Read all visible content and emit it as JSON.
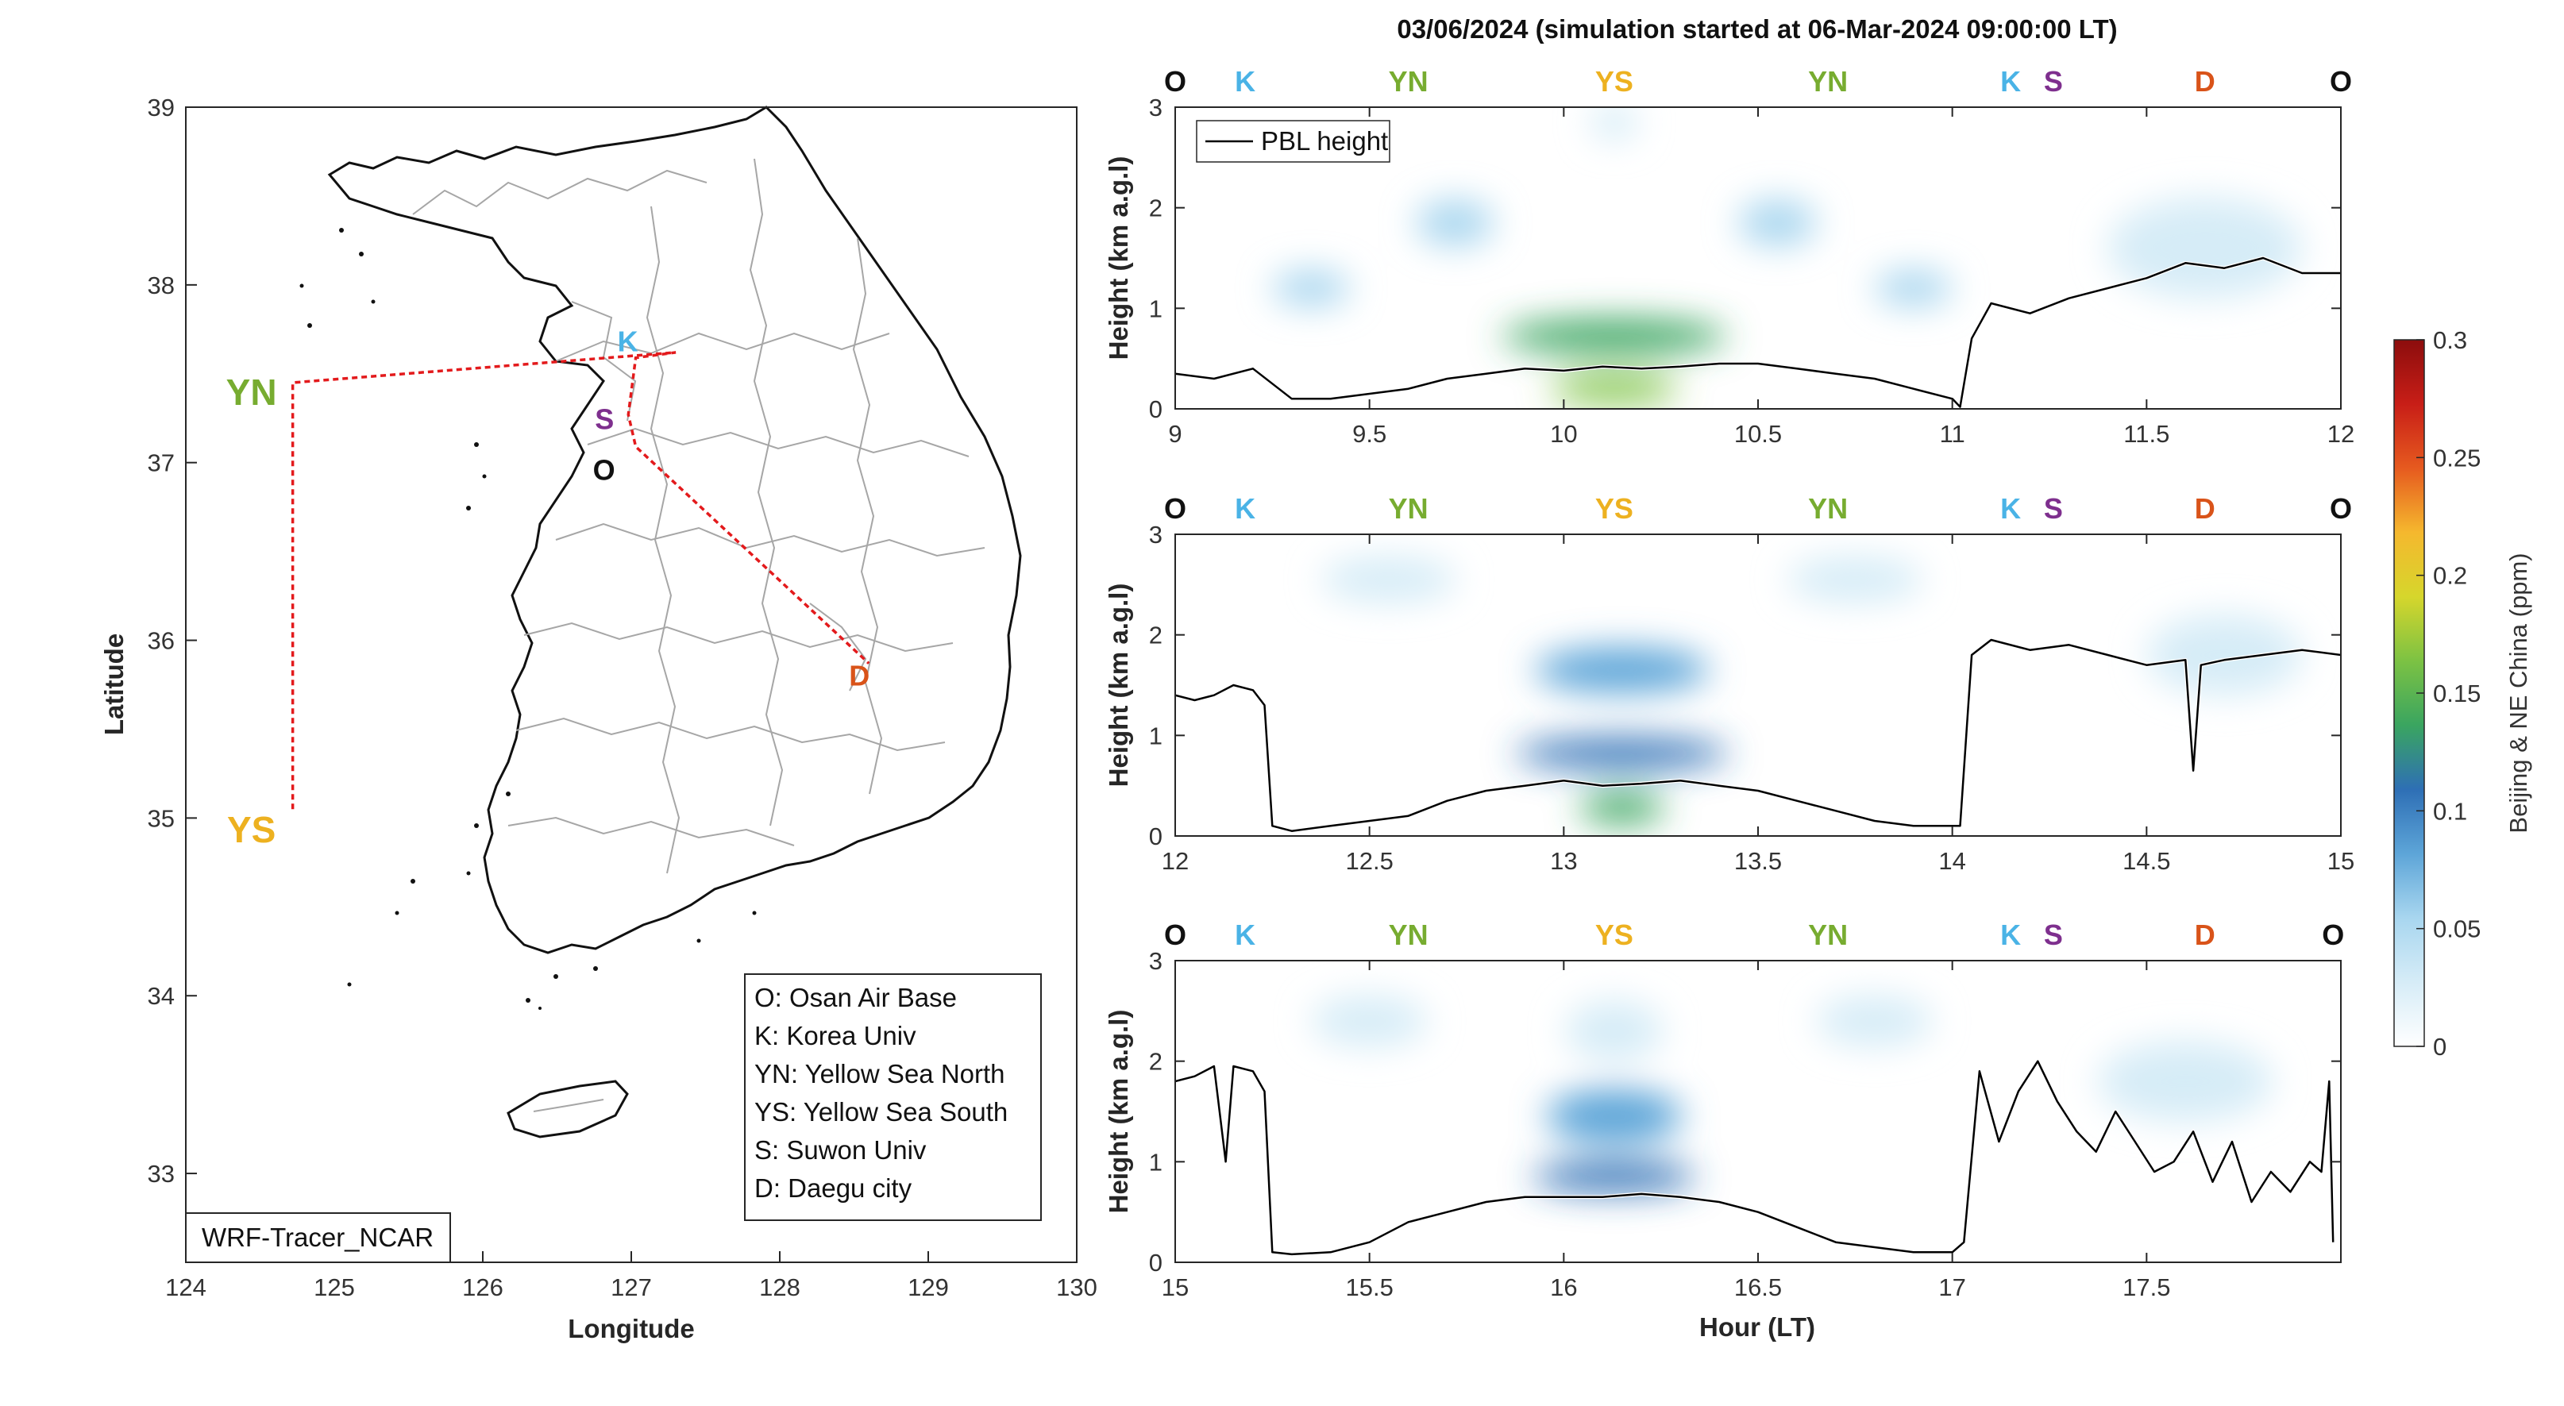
{
  "colors": {
    "O": "#111111",
    "K": "#4ab3e6",
    "YN": "#77ac30",
    "YS": "#edb120",
    "S": "#7e2f8e",
    "D": "#d95319",
    "track": "#e31a1c",
    "pbl": "#000000"
  },
  "map": {
    "xlabel": "Longitude",
    "ylabel": "Latitude",
    "xticks": [
      "124",
      "125",
      "126",
      "127",
      "128",
      "129",
      "130"
    ],
    "yticks": [
      "33",
      "34",
      "35",
      "36",
      "37",
      "38",
      "39"
    ],
    "xlim": [
      124,
      130
    ],
    "ylim": [
      32.5,
      39
    ],
    "model_label": "WRF-Tracer_NCAR",
    "sites": [
      {
        "code": "YN",
        "lon": 124.72,
        "lat": 37.45
      },
      {
        "code": "YS",
        "lon": 124.72,
        "lat": 35.05
      },
      {
        "code": "K",
        "lon": 127.03,
        "lat": 37.59
      },
      {
        "code": "S",
        "lon": 126.98,
        "lat": 37.27
      },
      {
        "code": "O",
        "lon": 127.03,
        "lat": 37.09
      },
      {
        "code": "D",
        "lon": 128.6,
        "lat": 35.87
      }
    ],
    "legend": [
      "O: Osan Air Base",
      "K: Korea Univ",
      "YN: Yellow Sea North",
      "YS: Yellow Sea South",
      "S: Suwon Univ",
      "D: Daegu city"
    ],
    "icons": [
      "korea-coastline-icon",
      "jeju-island-icon",
      "admin-boundary-icon"
    ]
  },
  "curtain": {
    "title": "03/06/2024 (simulation started at 06-Mar-2024 09:00:00 LT)",
    "xlabel": "Hour (LT)",
    "ylabel": "Height (km a.g.l)",
    "legend_label": "PBL height",
    "colorbar_label": "Beijing & NE China (ppm)",
    "colorbar_ticks": [
      "0",
      "0.05",
      "0.1",
      "0.15",
      "0.2",
      "0.25",
      "0.3"
    ],
    "colorbar_range": [
      0,
      0.3
    ],
    "colorbar_colors": [
      "#ffffff",
      "#d6ecf7",
      "#a8d6ef",
      "#5da5d8",
      "#2e6fb5",
      "#3aa560",
      "#7cc243",
      "#d6d62c",
      "#f5b82e",
      "#e65a1f",
      "#c81e17",
      "#8c0d0d"
    ]
  },
  "chart_data": [
    {
      "type": "heatmap",
      "panel": "top",
      "x_range": [
        9,
        12
      ],
      "ylim": [
        0,
        3
      ],
      "xticks": [
        "9",
        "9.5",
        "10",
        "10.5",
        "11",
        "11.5",
        "12"
      ],
      "yticks": [
        "0",
        "1",
        "2",
        "3"
      ],
      "site_sequence": [
        {
          "code": "O",
          "hour": 9.0
        },
        {
          "code": "K",
          "hour": 9.18
        },
        {
          "code": "YN",
          "hour": 9.6
        },
        {
          "code": "YS",
          "hour": 10.13
        },
        {
          "code": "YN",
          "hour": 10.68
        },
        {
          "code": "K",
          "hour": 11.15
        },
        {
          "code": "S",
          "hour": 11.26
        },
        {
          "code": "D",
          "hour": 11.65
        },
        {
          "code": "O",
          "hour": 12.0
        }
      ],
      "pbl_height_km": {
        "x": [
          9.0,
          9.1,
          9.2,
          9.3,
          9.4,
          9.5,
          9.6,
          9.7,
          9.8,
          9.9,
          10.0,
          10.1,
          10.2,
          10.3,
          10.4,
          10.5,
          10.6,
          10.7,
          10.8,
          10.9,
          11.0,
          11.02,
          11.05,
          11.1,
          11.2,
          11.3,
          11.4,
          11.5,
          11.6,
          11.7,
          11.8,
          11.9,
          12.0
        ],
        "y": [
          0.35,
          0.3,
          0.4,
          0.1,
          0.1,
          0.15,
          0.2,
          0.3,
          0.35,
          0.4,
          0.38,
          0.42,
          0.4,
          0.42,
          0.45,
          0.45,
          0.4,
          0.35,
          0.3,
          0.2,
          0.1,
          0.02,
          0.7,
          1.05,
          0.95,
          1.1,
          1.2,
          1.3,
          1.45,
          1.4,
          1.5,
          1.35,
          1.35
        ]
      },
      "plume": [
        {
          "hour": 10.13,
          "height": 0.72,
          "dx": 0.58,
          "dy": 0.34,
          "value": 0.125
        },
        {
          "hour": 10.13,
          "height": 0.2,
          "dx": 0.33,
          "dy": 0.28,
          "value": 0.16
        },
        {
          "hour": 9.72,
          "height": 1.85,
          "dx": 0.2,
          "dy": 0.45,
          "value": 0.05
        },
        {
          "hour": 10.55,
          "height": 1.85,
          "dx": 0.2,
          "dy": 0.45,
          "value": 0.05
        },
        {
          "hour": 9.35,
          "height": 1.2,
          "dx": 0.2,
          "dy": 0.35,
          "value": 0.06
        },
        {
          "hour": 10.9,
          "height": 1.2,
          "dx": 0.2,
          "dy": 0.35,
          "value": 0.06
        },
        {
          "hour": 10.13,
          "height": 2.85,
          "dx": 0.12,
          "dy": 0.35,
          "value": 0.03
        },
        {
          "hour": 11.65,
          "height": 1.6,
          "dx": 0.5,
          "dy": 1.0,
          "value": 0.025
        }
      ]
    },
    {
      "type": "heatmap",
      "panel": "middle",
      "x_range": [
        12,
        15
      ],
      "ylim": [
        0,
        3
      ],
      "xticks": [
        "12",
        "12.5",
        "13",
        "13.5",
        "14",
        "14.5",
        "15"
      ],
      "yticks": [
        "0",
        "1",
        "2",
        "3"
      ],
      "site_sequence": [
        {
          "code": "O",
          "hour": 12.0
        },
        {
          "code": "K",
          "hour": 12.18
        },
        {
          "code": "YN",
          "hour": 12.6
        },
        {
          "code": "YS",
          "hour": 13.13
        },
        {
          "code": "YN",
          "hour": 13.68
        },
        {
          "code": "K",
          "hour": 14.15
        },
        {
          "code": "S",
          "hour": 14.26
        },
        {
          "code": "D",
          "hour": 14.65
        },
        {
          "code": "O",
          "hour": 15.0
        }
      ],
      "pbl_height_km": {
        "x": [
          12.0,
          12.05,
          12.1,
          12.15,
          12.2,
          12.23,
          12.25,
          12.3,
          12.4,
          12.5,
          12.6,
          12.7,
          12.8,
          12.9,
          13.0,
          13.1,
          13.2,
          13.3,
          13.4,
          13.5,
          13.6,
          13.7,
          13.8,
          13.9,
          14.0,
          14.02,
          14.05,
          14.1,
          14.2,
          14.3,
          14.4,
          14.5,
          14.6,
          14.62,
          14.64,
          14.7,
          14.8,
          14.9,
          15.0
        ],
        "y": [
          1.4,
          1.35,
          1.4,
          1.5,
          1.45,
          1.3,
          0.1,
          0.05,
          0.1,
          0.15,
          0.2,
          0.35,
          0.45,
          0.5,
          0.55,
          0.5,
          0.52,
          0.55,
          0.5,
          0.45,
          0.35,
          0.25,
          0.15,
          0.1,
          0.1,
          0.1,
          1.8,
          1.95,
          1.85,
          1.9,
          1.8,
          1.7,
          1.75,
          0.65,
          1.7,
          1.75,
          1.8,
          1.85,
          1.8
        ]
      },
      "plume": [
        {
          "hour": 13.15,
          "height": 0.82,
          "dx": 0.55,
          "dy": 0.3,
          "value": 0.12
        },
        {
          "hour": 13.15,
          "height": 0.28,
          "dx": 0.22,
          "dy": 0.3,
          "value": 0.14
        },
        {
          "hour": 13.15,
          "height": 1.65,
          "dx": 0.45,
          "dy": 0.45,
          "value": 0.075
        },
        {
          "hour": 12.55,
          "height": 2.55,
          "dx": 0.35,
          "dy": 0.45,
          "value": 0.03
        },
        {
          "hour": 13.75,
          "height": 2.55,
          "dx": 0.35,
          "dy": 0.45,
          "value": 0.03
        },
        {
          "hour": 14.7,
          "height": 1.8,
          "dx": 0.4,
          "dy": 0.8,
          "value": 0.02
        }
      ]
    },
    {
      "type": "heatmap",
      "panel": "bottom",
      "x_range": [
        15,
        18
      ],
      "ylim": [
        0,
        3
      ],
      "xticks": [
        "15",
        "15.5",
        "16",
        "16.5",
        "17",
        "17.5"
      ],
      "yticks": [
        "0",
        "1",
        "2",
        "3"
      ],
      "site_sequence": [
        {
          "code": "O",
          "hour": 15.0
        },
        {
          "code": "K",
          "hour": 15.18
        },
        {
          "code": "YN",
          "hour": 15.6
        },
        {
          "code": "YS",
          "hour": 16.13
        },
        {
          "code": "YN",
          "hour": 16.68
        },
        {
          "code": "K",
          "hour": 17.15
        },
        {
          "code": "S",
          "hour": 17.26
        },
        {
          "code": "D",
          "hour": 17.65
        },
        {
          "code": "O",
          "hour": 17.98
        }
      ],
      "pbl_height_km": {
        "x": [
          15.0,
          15.05,
          15.1,
          15.13,
          15.15,
          15.2,
          15.23,
          15.25,
          15.3,
          15.4,
          15.5,
          15.6,
          15.7,
          15.8,
          15.9,
          16.0,
          16.1,
          16.2,
          16.3,
          16.4,
          16.5,
          16.6,
          16.7,
          16.8,
          16.9,
          17.0,
          17.03,
          17.07,
          17.12,
          17.17,
          17.22,
          17.27,
          17.32,
          17.37,
          17.42,
          17.47,
          17.52,
          17.57,
          17.62,
          17.67,
          17.72,
          17.77,
          17.82,
          17.87,
          17.92,
          17.95,
          17.97,
          17.98
        ],
        "y": [
          1.8,
          1.85,
          1.95,
          1.0,
          1.95,
          1.9,
          1.7,
          0.1,
          0.08,
          0.1,
          0.2,
          0.4,
          0.5,
          0.6,
          0.65,
          0.65,
          0.65,
          0.68,
          0.65,
          0.6,
          0.5,
          0.35,
          0.2,
          0.15,
          0.1,
          0.1,
          0.2,
          1.9,
          1.2,
          1.7,
          2.0,
          1.6,
          1.3,
          1.1,
          1.5,
          1.2,
          0.9,
          1.0,
          1.3,
          0.8,
          1.2,
          0.6,
          0.9,
          0.7,
          1.0,
          0.9,
          1.8,
          0.2
        ]
      },
      "plume": [
        {
          "hour": 16.13,
          "height": 0.85,
          "dx": 0.42,
          "dy": 0.3,
          "value": 0.115
        },
        {
          "hour": 16.13,
          "height": 1.45,
          "dx": 0.35,
          "dy": 0.55,
          "value": 0.07
        },
        {
          "hour": 16.13,
          "height": 2.3,
          "dx": 0.25,
          "dy": 0.6,
          "value": 0.04
        },
        {
          "hour": 15.5,
          "height": 2.4,
          "dx": 0.3,
          "dy": 0.5,
          "value": 0.025
        },
        {
          "hour": 16.8,
          "height": 2.4,
          "dx": 0.3,
          "dy": 0.5,
          "value": 0.025
        },
        {
          "hour": 17.6,
          "height": 1.8,
          "dx": 0.45,
          "dy": 0.8,
          "value": 0.02
        }
      ]
    }
  ]
}
